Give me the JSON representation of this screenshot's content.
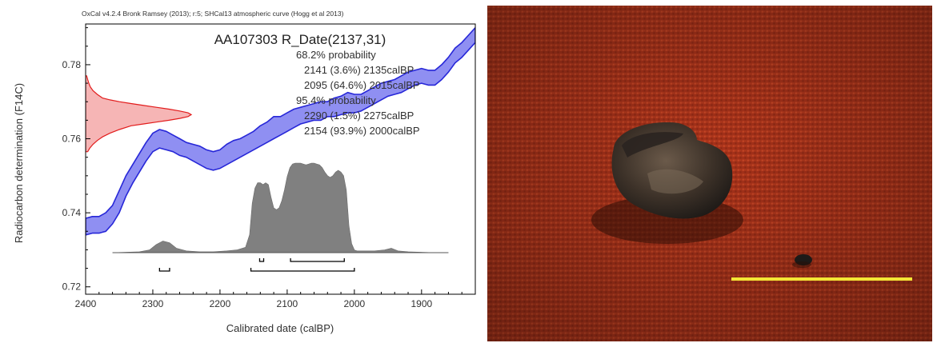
{
  "chart_data": {
    "type": "line",
    "header": "OxCal v4.2.4 Bronk Ramsey (2013); r:5; SHCal13 atmospheric curve (Hogg et al 2013)",
    "title": "AA107303 R_Date(2137,31)",
    "xlabel": "Calibrated date (calBP)",
    "ylabel": "Radiocarbon determination (F14C)",
    "x_reversed": true,
    "xlim": [
      2400,
      1820
    ],
    "ylim": [
      0.718,
      0.791
    ],
    "x_ticks": [
      "2400",
      "2300",
      "2200",
      "2100",
      "2000",
      "1900"
    ],
    "y_ticks": [
      "0.72",
      "0.74",
      "0.76",
      "0.78"
    ],
    "annotations": [
      "68.2% probability",
      "2141 (3.6%) 2135calBP",
      "2095 (64.6%) 2015calBP",
      "95.4% probability",
      "2290 (1.5%) 2275calBP",
      "2154 (93.9%) 2000calBP"
    ],
    "series": [
      {
        "role": "calibration-curve",
        "x": [
          2400,
          2390,
          2380,
          2370,
          2360,
          2350,
          2340,
          2330,
          2320,
          2310,
          2300,
          2290,
          2280,
          2270,
          2260,
          2250,
          2240,
          2230,
          2220,
          2210,
          2200,
          2190,
          2180,
          2170,
          2160,
          2150,
          2140,
          2130,
          2120,
          2110,
          2100,
          2090,
          2080,
          2070,
          2060,
          2050,
          2040,
          2030,
          2020,
          2010,
          2000,
          1990,
          1980,
          1970,
          1960,
          1950,
          1940,
          1930,
          1920,
          1910,
          1900,
          1890,
          1880,
          1870,
          1860,
          1850,
          1840,
          1830,
          1820
        ],
        "upper": [
          0.7385,
          0.739,
          0.739,
          0.74,
          0.742,
          0.746,
          0.75,
          0.753,
          0.756,
          0.759,
          0.7615,
          0.7625,
          0.762,
          0.761,
          0.76,
          0.759,
          0.7585,
          0.758,
          0.757,
          0.7565,
          0.757,
          0.7585,
          0.7595,
          0.76,
          0.761,
          0.762,
          0.7635,
          0.7645,
          0.766,
          0.766,
          0.767,
          0.768,
          0.7685,
          0.769,
          0.7695,
          0.77,
          0.77,
          0.771,
          0.7715,
          0.7725,
          0.772,
          0.772,
          0.773,
          0.774,
          0.775,
          0.7755,
          0.776,
          0.777,
          0.778,
          0.7785,
          0.779,
          0.7785,
          0.7785,
          0.78,
          0.782,
          0.7845,
          0.786,
          0.788,
          0.79
        ],
        "lower": [
          0.734,
          0.7345,
          0.7345,
          0.735,
          0.737,
          0.74,
          0.7445,
          0.748,
          0.751,
          0.754,
          0.7565,
          0.7575,
          0.757,
          0.7565,
          0.7555,
          0.755,
          0.754,
          0.753,
          0.752,
          0.7515,
          0.752,
          0.753,
          0.754,
          0.755,
          0.756,
          0.757,
          0.758,
          0.759,
          0.76,
          0.761,
          0.762,
          0.763,
          0.764,
          0.7645,
          0.765,
          0.765,
          0.766,
          0.766,
          0.7665,
          0.767,
          0.767,
          0.7675,
          0.7685,
          0.7695,
          0.7705,
          0.7715,
          0.772,
          0.7725,
          0.7735,
          0.7745,
          0.775,
          0.7745,
          0.7745,
          0.776,
          0.778,
          0.7805,
          0.782,
          0.784,
          0.786
        ]
      },
      {
        "role": "radiocarbon-determination",
        "y": [
          0.7565,
          0.7575,
          0.7585,
          0.7595,
          0.7605,
          0.7615,
          0.7625,
          0.7635,
          0.764,
          0.7645,
          0.765,
          0.7655,
          0.766,
          0.7665,
          0.767,
          0.7675,
          0.768,
          0.7685,
          0.769,
          0.7695,
          0.77,
          0.7705,
          0.771,
          0.772,
          0.773,
          0.774,
          0.775,
          0.776,
          0.777
        ],
        "density": [
          0.02,
          0.04,
          0.07,
          0.11,
          0.16,
          0.23,
          0.32,
          0.43,
          0.55,
          0.67,
          0.79,
          0.89,
          0.97,
          1.0,
          0.97,
          0.89,
          0.79,
          0.67,
          0.55,
          0.43,
          0.32,
          0.23,
          0.16,
          0.11,
          0.07,
          0.045,
          0.03,
          0.02,
          0.01
        ]
      },
      {
        "role": "calibrated-distribution",
        "x": [
          2360,
          2320,
          2305,
          2295,
          2285,
          2275,
          2265,
          2250,
          2230,
          2210,
          2190,
          2175,
          2162,
          2156,
          2152,
          2148,
          2144,
          2140,
          2136,
          2132,
          2128,
          2124,
          2120,
          2116,
          2112,
          2108,
          2104,
          2100,
          2096,
          2092,
          2088,
          2084,
          2080,
          2076,
          2072,
          2068,
          2064,
          2060,
          2056,
          2052,
          2048,
          2044,
          2040,
          2036,
          2032,
          2028,
          2024,
          2020,
          2016,
          2012,
          2008,
          2004,
          2000,
          1996,
          1992,
          1985,
          1970,
          1955,
          1945,
          1935,
          1920,
          1880,
          1860
        ],
        "density": [
          0,
          0.01,
          0.03,
          0.09,
          0.13,
          0.11,
          0.05,
          0.02,
          0.01,
          0.01,
          0.02,
          0.03,
          0.06,
          0.2,
          0.55,
          0.72,
          0.78,
          0.78,
          0.76,
          0.78,
          0.76,
          0.62,
          0.5,
          0.48,
          0.5,
          0.58,
          0.7,
          0.85,
          0.95,
          0.99,
          1.0,
          1.0,
          1.0,
          0.99,
          0.98,
          0.99,
          1.0,
          1.0,
          0.99,
          0.98,
          0.95,
          0.9,
          0.86,
          0.84,
          0.86,
          0.9,
          0.92,
          0.9,
          0.86,
          0.7,
          0.3,
          0.1,
          0.03,
          0.02,
          0.02,
          0.02,
          0.02,
          0.03,
          0.05,
          0.02,
          0.01,
          0,
          0
        ]
      }
    ],
    "ranges_68": [
      [
        2141,
        2135
      ],
      [
        2095,
        2015
      ]
    ],
    "ranges_95": [
      [
        2290,
        2275
      ],
      [
        2154,
        2000
      ]
    ],
    "colors": {
      "curve_fill": "#8f8ff2",
      "curve_stroke": "#2727d8",
      "rdate_fill": "#f6b5b5",
      "rdate_stroke": "#e21c1c",
      "distribution": "#808080",
      "text": "#303030"
    }
  },
  "photo": {
    "scale_bar_color": "#f3e635",
    "background_color": "#a8321a"
  }
}
